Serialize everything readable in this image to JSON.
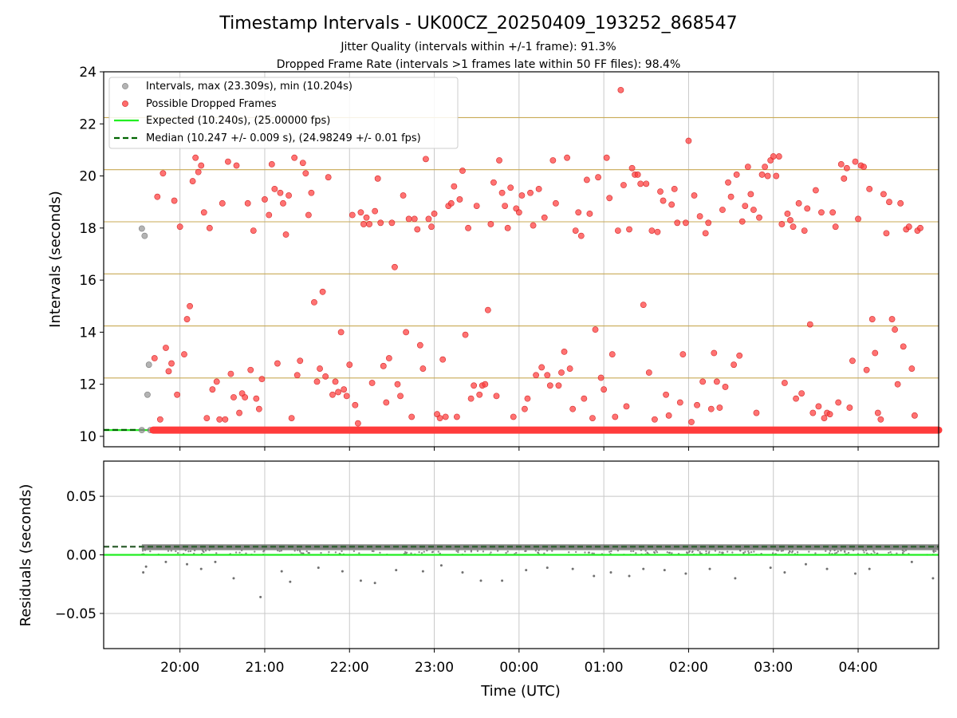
{
  "title": "Timestamp Intervals - UK00CZ_20250409_193252_868547",
  "subtitle_1": "Jitter Quality (intervals within +/-1 frame): 91.3%",
  "subtitle_2": "Dropped Frame Rate (intervals >1 frames late within 50 FF files): 98.4%",
  "colors": {
    "intervals": "#999999",
    "dropped": "#ff3b3b",
    "expected": "#22ee22",
    "median": "#006400",
    "frame_grid": "#c8aa55",
    "grid": "#c8c8c8",
    "residuals": "#707070"
  },
  "chart_data": [
    {
      "type": "scatter",
      "panel": "top",
      "ylabel": "Intervals (seconds)",
      "ylim": [
        9.6,
        24
      ],
      "xlim": [
        "19:06",
        "04:57"
      ],
      "yticks": [
        "10",
        "12",
        "14",
        "16",
        "18",
        "20",
        "22",
        "24"
      ],
      "xticks": [
        "20:00",
        "21:00",
        "22:00",
        "23:00",
        "00:00",
        "01:00",
        "02:00",
        "03:00",
        "04:00"
      ],
      "grid": true,
      "legend_position": "upper-left",
      "legend": [
        "Intervals, max (23.309s), min (10.204s)",
        "Possible Dropped Frames",
        "Expected (10.240s), (25.00000 fps)",
        "Median (10.247 +/- 0.009 s), (24.98249 +/- 0.01 fps)"
      ],
      "expected_interval": 10.24,
      "median_interval": 10.247,
      "frame_levels": [
        10.24,
        12.24,
        14.24,
        16.24,
        18.24,
        20.24,
        22.24
      ],
      "baseline_y": 10.24,
      "baseline_x_range": [
        "19:41",
        "04:57"
      ],
      "intervals_points": [
        [
          "19:33",
          10.24
        ],
        [
          "19:33",
          17.98
        ],
        [
          "19:35",
          17.7
        ],
        [
          "19:37",
          11.6
        ],
        [
          "19:38",
          12.75
        ],
        [
          "19:39",
          10.24
        ]
      ],
      "dropped_points": [
        [
          "19:42",
          13.0
        ],
        [
          "19:44",
          19.2
        ],
        [
          "19:46",
          10.65
        ],
        [
          "19:48",
          20.1
        ],
        [
          "19:50",
          13.4
        ],
        [
          "19:52",
          12.5
        ],
        [
          "19:54",
          12.8
        ],
        [
          "19:56",
          19.05
        ],
        [
          "19:58",
          11.6
        ],
        [
          "20:00",
          18.05
        ],
        [
          "20:03",
          13.15
        ],
        [
          "20:05",
          14.5
        ],
        [
          "20:07",
          15.0
        ],
        [
          "20:09",
          19.8
        ],
        [
          "20:11",
          20.7
        ],
        [
          "20:13",
          20.15
        ],
        [
          "20:15",
          20.4
        ],
        [
          "20:17",
          18.6
        ],
        [
          "20:19",
          10.7
        ],
        [
          "20:21",
          18.0
        ],
        [
          "20:23",
          11.8
        ],
        [
          "20:26",
          12.1
        ],
        [
          "20:28",
          10.65
        ],
        [
          "20:30",
          18.95
        ],
        [
          "20:32",
          10.65
        ],
        [
          "20:34",
          20.55
        ],
        [
          "20:36",
          12.4
        ],
        [
          "20:38",
          11.5
        ],
        [
          "20:40",
          20.4
        ],
        [
          "20:42",
          10.9
        ],
        [
          "20:44",
          11.65
        ],
        [
          "20:46",
          11.5
        ],
        [
          "20:48",
          18.95
        ],
        [
          "20:50",
          12.55
        ],
        [
          "20:52",
          17.9
        ],
        [
          "20:54",
          11.45
        ],
        [
          "20:56",
          11.05
        ],
        [
          "20:58",
          12.2
        ],
        [
          "21:00",
          19.1
        ],
        [
          "21:03",
          18.5
        ],
        [
          "21:05",
          20.45
        ],
        [
          "21:07",
          19.5
        ],
        [
          "21:09",
          12.8
        ],
        [
          "21:11",
          19.35
        ],
        [
          "21:13",
          18.95
        ],
        [
          "21:15",
          17.75
        ],
        [
          "21:17",
          19.25
        ],
        [
          "21:19",
          10.7
        ],
        [
          "21:21",
          20.7
        ],
        [
          "21:23",
          12.35
        ],
        [
          "21:25",
          12.9
        ],
        [
          "21:27",
          20.5
        ],
        [
          "21:29",
          20.1
        ],
        [
          "21:31",
          18.5
        ],
        [
          "21:33",
          19.35
        ],
        [
          "21:35",
          15.15
        ],
        [
          "21:37",
          12.1
        ],
        [
          "21:39",
          12.6
        ],
        [
          "21:41",
          15.55
        ],
        [
          "21:43",
          12.3
        ],
        [
          "21:45",
          19.95
        ],
        [
          "21:48",
          11.6
        ],
        [
          "21:50",
          12.1
        ],
        [
          "21:52",
          11.7
        ],
        [
          "21:54",
          14.0
        ],
        [
          "21:56",
          11.8
        ],
        [
          "21:58",
          11.55
        ],
        [
          "22:00",
          12.75
        ],
        [
          "22:02",
          18.5
        ],
        [
          "22:04",
          11.2
        ],
        [
          "22:06",
          10.5
        ],
        [
          "22:08",
          18.6
        ],
        [
          "22:10",
          18.15
        ],
        [
          "22:12",
          18.4
        ],
        [
          "22:14",
          18.15
        ],
        [
          "22:16",
          12.05
        ],
        [
          "22:18",
          18.65
        ],
        [
          "22:20",
          19.9
        ],
        [
          "22:22",
          18.2
        ],
        [
          "22:24",
          12.7
        ],
        [
          "22:26",
          11.3
        ],
        [
          "22:28",
          13.0
        ],
        [
          "22:30",
          18.2
        ],
        [
          "22:32",
          16.5
        ],
        [
          "22:34",
          12.0
        ],
        [
          "22:36",
          11.55
        ],
        [
          "22:38",
          19.25
        ],
        [
          "22:40",
          14.0
        ],
        [
          "22:42",
          18.35
        ],
        [
          "22:44",
          10.75
        ],
        [
          "22:46",
          18.35
        ],
        [
          "22:48",
          17.95
        ],
        [
          "22:50",
          13.5
        ],
        [
          "22:52",
          12.6
        ],
        [
          "22:54",
          20.65
        ],
        [
          "22:56",
          18.35
        ],
        [
          "22:58",
          18.05
        ],
        [
          "23:00",
          18.55
        ],
        [
          "23:02",
          10.85
        ],
        [
          "23:04",
          10.7
        ],
        [
          "23:06",
          12.95
        ],
        [
          "23:08",
          10.75
        ],
        [
          "23:10",
          18.85
        ],
        [
          "23:12",
          18.95
        ],
        [
          "23:14",
          19.6
        ],
        [
          "23:16",
          10.75
        ],
        [
          "23:18",
          19.1
        ],
        [
          "23:20",
          20.2
        ],
        [
          "23:22",
          13.9
        ],
        [
          "23:24",
          18.0
        ],
        [
          "23:26",
          11.45
        ],
        [
          "23:28",
          11.95
        ],
        [
          "23:30",
          18.85
        ],
        [
          "23:32",
          11.6
        ],
        [
          "23:34",
          11.95
        ],
        [
          "23:36",
          12.0
        ],
        [
          "23:38",
          14.85
        ],
        [
          "23:40",
          18.15
        ],
        [
          "23:42",
          19.75
        ],
        [
          "23:44",
          11.55
        ],
        [
          "23:46",
          20.6
        ],
        [
          "23:48",
          19.35
        ],
        [
          "23:50",
          18.85
        ],
        [
          "23:52",
          18.0
        ],
        [
          "23:54",
          19.55
        ],
        [
          "23:56",
          10.75
        ],
        [
          "23:58",
          18.75
        ],
        [
          "00:00",
          18.6
        ],
        [
          "00:02",
          19.25
        ],
        [
          "00:04",
          11.05
        ],
        [
          "00:06",
          11.45
        ],
        [
          "00:08",
          19.35
        ],
        [
          "00:10",
          18.1
        ],
        [
          "00:12",
          12.35
        ],
        [
          "00:14",
          19.5
        ],
        [
          "00:16",
          12.65
        ],
        [
          "00:18",
          18.4
        ],
        [
          "00:20",
          12.35
        ],
        [
          "00:22",
          11.95
        ],
        [
          "00:24",
          20.6
        ],
        [
          "00:26",
          18.95
        ],
        [
          "00:28",
          11.95
        ],
        [
          "00:30",
          12.45
        ],
        [
          "00:32",
          13.25
        ],
        [
          "00:34",
          20.7
        ],
        [
          "00:36",
          12.6
        ],
        [
          "00:38",
          11.05
        ],
        [
          "00:40",
          17.9
        ],
        [
          "00:42",
          18.6
        ],
        [
          "00:44",
          17.7
        ],
        [
          "00:46",
          11.45
        ],
        [
          "00:48",
          19.85
        ],
        [
          "00:50",
          18.55
        ],
        [
          "00:52",
          10.7
        ],
        [
          "00:54",
          14.1
        ],
        [
          "00:56",
          19.95
        ],
        [
          "00:58",
          12.25
        ],
        [
          "01:00",
          11.8
        ],
        [
          "01:02",
          20.7
        ],
        [
          "01:04",
          19.15
        ],
        [
          "01:06",
          13.15
        ],
        [
          "01:08",
          10.75
        ],
        [
          "01:10",
          17.9
        ],
        [
          "01:12",
          23.3
        ],
        [
          "01:14",
          19.65
        ],
        [
          "01:16",
          11.15
        ],
        [
          "01:18",
          17.95
        ],
        [
          "01:20",
          20.3
        ],
        [
          "01:22",
          20.05
        ],
        [
          "01:24",
          20.05
        ],
        [
          "01:26",
          19.7
        ],
        [
          "01:28",
          15.05
        ],
        [
          "01:30",
          19.7
        ],
        [
          "01:32",
          12.45
        ],
        [
          "01:34",
          17.9
        ],
        [
          "01:36",
          10.65
        ],
        [
          "01:38",
          17.85
        ],
        [
          "01:40",
          19.4
        ],
        [
          "01:42",
          19.05
        ],
        [
          "01:44",
          11.6
        ],
        [
          "01:46",
          10.8
        ],
        [
          "01:48",
          18.9
        ],
        [
          "01:50",
          19.5
        ],
        [
          "01:52",
          18.2
        ],
        [
          "01:54",
          11.3
        ],
        [
          "01:56",
          13.15
        ],
        [
          "01:58",
          18.2
        ],
        [
          "02:00",
          21.35
        ],
        [
          "02:02",
          10.55
        ],
        [
          "02:04",
          19.25
        ],
        [
          "02:06",
          11.2
        ],
        [
          "02:08",
          18.45
        ],
        [
          "02:10",
          12.1
        ],
        [
          "02:12",
          17.8
        ],
        [
          "02:14",
          18.2
        ],
        [
          "02:16",
          11.05
        ],
        [
          "02:18",
          13.2
        ],
        [
          "02:20",
          12.1
        ],
        [
          "02:22",
          11.1
        ],
        [
          "02:24",
          18.7
        ],
        [
          "02:26",
          11.9
        ],
        [
          "02:28",
          19.75
        ],
        [
          "02:30",
          19.2
        ],
        [
          "02:32",
          12.75
        ],
        [
          "02:34",
          20.05
        ],
        [
          "02:36",
          13.1
        ],
        [
          "02:38",
          18.25
        ],
        [
          "02:40",
          18.85
        ],
        [
          "02:42",
          20.35
        ],
        [
          "02:44",
          19.3
        ],
        [
          "02:46",
          18.7
        ],
        [
          "02:48",
          10.9
        ],
        [
          "02:50",
          18.4
        ],
        [
          "02:52",
          20.05
        ],
        [
          "02:54",
          20.35
        ],
        [
          "02:56",
          20.0
        ],
        [
          "02:58",
          20.6
        ],
        [
          "03:00",
          20.75
        ],
        [
          "03:02",
          20.0
        ],
        [
          "03:04",
          20.75
        ],
        [
          "03:06",
          18.15
        ],
        [
          "03:08",
          12.05
        ],
        [
          "03:10",
          18.55
        ],
        [
          "03:12",
          18.3
        ],
        [
          "03:14",
          18.05
        ],
        [
          "03:16",
          11.45
        ],
        [
          "03:18",
          18.95
        ],
        [
          "03:20",
          11.65
        ],
        [
          "03:22",
          17.9
        ],
        [
          "03:24",
          18.75
        ],
        [
          "03:26",
          14.3
        ],
        [
          "03:28",
          10.9
        ],
        [
          "03:30",
          19.45
        ],
        [
          "03:32",
          11.15
        ],
        [
          "03:34",
          18.6
        ],
        [
          "03:36",
          10.7
        ],
        [
          "03:38",
          10.9
        ],
        [
          "03:40",
          10.85
        ],
        [
          "03:42",
          18.6
        ],
        [
          "03:44",
          18.05
        ],
        [
          "03:46",
          11.3
        ],
        [
          "03:48",
          20.45
        ],
        [
          "03:50",
          19.9
        ],
        [
          "03:52",
          20.3
        ],
        [
          "03:54",
          11.1
        ],
        [
          "03:56",
          12.9
        ],
        [
          "03:58",
          20.55
        ],
        [
          "04:00",
          18.35
        ],
        [
          "04:02",
          20.4
        ],
        [
          "04:04",
          20.35
        ],
        [
          "04:06",
          12.55
        ],
        [
          "04:08",
          19.5
        ],
        [
          "04:10",
          14.5
        ],
        [
          "04:12",
          13.2
        ],
        [
          "04:14",
          10.9
        ],
        [
          "04:16",
          10.65
        ],
        [
          "04:18",
          19.3
        ],
        [
          "04:20",
          17.8
        ],
        [
          "04:22",
          19.0
        ],
        [
          "04:24",
          14.5
        ],
        [
          "04:26",
          14.1
        ],
        [
          "04:28",
          12.0
        ],
        [
          "04:30",
          18.95
        ],
        [
          "04:32",
          13.45
        ],
        [
          "04:34",
          17.95
        ],
        [
          "04:36",
          18.05
        ],
        [
          "04:38",
          12.6
        ],
        [
          "04:40",
          10.8
        ],
        [
          "04:42",
          17.9
        ],
        [
          "04:44",
          18.0
        ]
      ]
    },
    {
      "type": "scatter",
      "panel": "bottom",
      "xlabel": "Time (UTC)",
      "ylabel": "Residuals (seconds)",
      "ylim": [
        -0.08,
        0.08
      ],
      "yticks": [
        "−0.05",
        "0.00",
        "0.05"
      ],
      "ytick_values": [
        -0.05,
        0.0,
        0.05
      ],
      "xticks": [
        "20:00",
        "21:00",
        "22:00",
        "23:00",
        "00:00",
        "01:00",
        "02:00",
        "03:00",
        "04:00"
      ],
      "grid": true,
      "expected_residual": 0.0,
      "median_residual": 0.007,
      "residual_band": [
        0.004,
        0.009
      ],
      "outliers": [
        [
          "19:34",
          -0.015
        ],
        [
          "19:36",
          -0.01
        ],
        [
          "19:50",
          -0.006
        ],
        [
          "20:05",
          -0.008
        ],
        [
          "20:15",
          -0.012
        ],
        [
          "20:25",
          -0.006
        ],
        [
          "20:38",
          -0.02
        ],
        [
          "20:57",
          -0.036
        ],
        [
          "21:12",
          -0.014
        ],
        [
          "21:18",
          -0.023
        ],
        [
          "21:38",
          -0.011
        ],
        [
          "21:55",
          -0.014
        ],
        [
          "22:08",
          -0.022
        ],
        [
          "22:18",
          -0.024
        ],
        [
          "22:33",
          -0.013
        ],
        [
          "22:52",
          -0.014
        ],
        [
          "23:05",
          -0.009
        ],
        [
          "23:20",
          -0.015
        ],
        [
          "23:33",
          -0.022
        ],
        [
          "23:48",
          -0.022
        ],
        [
          "00:05",
          -0.013
        ],
        [
          "00:20",
          -0.011
        ],
        [
          "00:38",
          -0.012
        ],
        [
          "00:53",
          -0.018
        ],
        [
          "01:05",
          -0.015
        ],
        [
          "01:18",
          -0.018
        ],
        [
          "01:28",
          -0.012
        ],
        [
          "01:43",
          -0.013
        ],
        [
          "01:58",
          -0.016
        ],
        [
          "02:15",
          -0.012
        ],
        [
          "02:33",
          -0.02
        ],
        [
          "02:58",
          -0.011
        ],
        [
          "03:08",
          -0.015
        ],
        [
          "03:23",
          -0.008
        ],
        [
          "03:38",
          -0.012
        ],
        [
          "03:58",
          -0.016
        ],
        [
          "04:08",
          -0.012
        ],
        [
          "04:38",
          -0.006
        ],
        [
          "04:53",
          -0.02
        ]
      ]
    }
  ]
}
